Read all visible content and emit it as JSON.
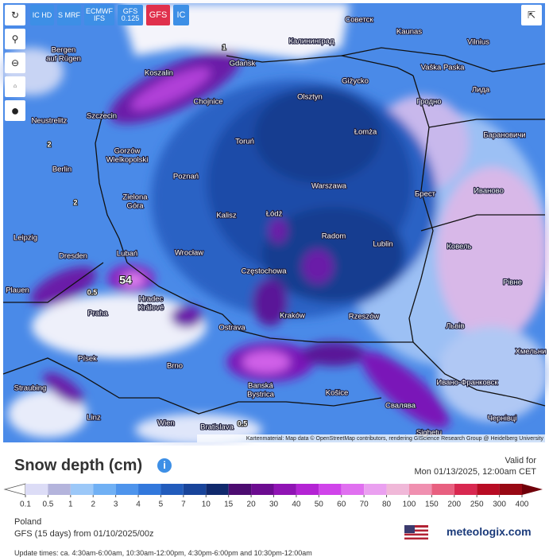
{
  "header": {
    "models": [
      "IC HD",
      "S MRF",
      "ECMWF",
      "IFS",
      "GFS",
      "0.125",
      "GFS",
      "IC"
    ]
  },
  "map": {
    "cities": [
      [
        "Советск"
      ],
      [
        "Kaunas"
      ],
      [
        "Vilnius"
      ],
      [
        "Калининград"
      ],
      [
        "Gdańsk"
      ],
      [
        "Vaška Paska"
      ],
      [
        "Лида"
      ],
      [
        "Гродно"
      ],
      [
        "Giżycko"
      ],
      [
        "Olsztyn"
      ],
      [
        "Koszalin"
      ],
      [
        "Bergen",
        "auf Rügen"
      ],
      [
        "Chojnice"
      ],
      [
        "Łomża"
      ],
      [
        "Барановичи"
      ],
      [
        "Neustrelitz"
      ],
      [
        "Szczecin"
      ],
      [
        "Toruń"
      ],
      [
        "Gorzów",
        "Wielkopolski"
      ],
      [
        "Berlin"
      ],
      [
        "Poznań"
      ],
      [
        "Warszawa"
      ],
      [
        "Брест"
      ],
      [
        "Иваново"
      ],
      [
        "Zielona",
        "Góra"
      ],
      [
        "Kalisz"
      ],
      [
        "Łódź"
      ],
      [
        "Leipzig"
      ],
      [
        "Radom"
      ],
      [
        "Lublin"
      ],
      [
        "Ковель"
      ],
      [
        "Dresden"
      ],
      [
        "Lubań"
      ],
      [
        "Wrocław"
      ],
      [
        "Częstochowa"
      ],
      [
        "Plauen"
      ],
      [
        "Hradec",
        "Králové"
      ],
      [
        "Рівне"
      ],
      [
        "Praha"
      ],
      [
        "Kraków"
      ],
      [
        "Rzeszów"
      ],
      [
        "Львів"
      ],
      [
        "Ostrava"
      ],
      [
        "Хмельни"
      ],
      [
        "Písek"
      ],
      [
        "Brno"
      ],
      [
        "Banská",
        "Bystrica"
      ],
      [
        "Košice"
      ],
      [
        "Ивано-Франковск"
      ],
      [
        "Straubing"
      ],
      [
        "Свалява"
      ],
      [
        "Linz"
      ],
      [
        "Wien"
      ],
      [
        "Bratislava"
      ],
      [
        "Sighetu"
      ],
      [
        "Чернівці"
      ]
    ],
    "contour_labels": [
      "54",
      "0.5",
      "2",
      "2",
      "1",
      "0.5"
    ],
    "attribution": "Kartenmaterial: Map data © OpenStreetMap contributors, rendering GIScience Research Group @ Heidelberg University"
  },
  "legend": {
    "labels": [
      "0.1",
      "0.5",
      "1",
      "2",
      "3",
      "4",
      "5",
      "7",
      "10",
      "15",
      "20",
      "30",
      "40",
      "50",
      "60",
      "70",
      "80",
      "100",
      "150",
      "200",
      "250",
      "300",
      "400"
    ],
    "colors": [
      "#dcdcf6",
      "#b4b4dc",
      "#9cc8f8",
      "#70b0f4",
      "#4e94ec",
      "#3278dc",
      "#225cbc",
      "#18449a",
      "#10296c",
      "#4c0c70",
      "#6c0c90",
      "#9014b4",
      "#b424d4",
      "#d044ea",
      "#e070f0",
      "#eaa0f0",
      "#f0b8d8",
      "#f090b0",
      "#e86080",
      "#d82850",
      "#b80c24",
      "#980814",
      "#70000a"
    ],
    "under_color": "#ffffff"
  },
  "footer": {
    "title": "Snow depth (cm)",
    "valid_label": "Valid for",
    "valid_time": "Mon 01/13/2025, 12:00am CET",
    "region": "Poland",
    "model_run": "GFS  (15 days) from 01/10/2025/00z",
    "brand": "meteologix.com",
    "update_times": "Update times: ca. 4:30am-6:00am, 10:30am-12:00pm, 4:30pm-6:00pm and 10:30pm-12:00am"
  }
}
